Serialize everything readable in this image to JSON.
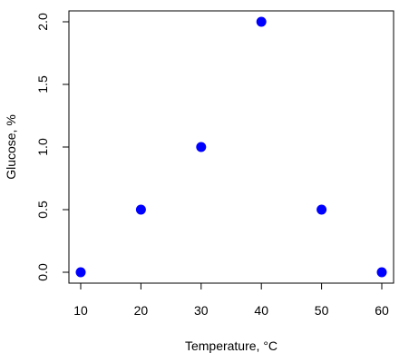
{
  "chart_data": {
    "type": "scatter",
    "title": "",
    "xlabel": "Temperature, °C",
    "ylabel": "Glucose, %",
    "x": [
      10,
      20,
      30,
      40,
      50,
      60
    ],
    "y": [
      0.0,
      0.5,
      1.0,
      2.0,
      0.5,
      0.0
    ],
    "xlim": [
      10,
      60
    ],
    "ylim": [
      0,
      2
    ],
    "x_ticks": [
      10,
      20,
      30,
      40,
      50,
      60
    ],
    "x_tick_labels": [
      "10",
      "20",
      "30",
      "40",
      "50",
      "60"
    ],
    "y_ticks": [
      0,
      0.5,
      1,
      1.5,
      2
    ],
    "y_tick_labels": [
      "0.0",
      "0.5",
      "1.0",
      "1.5",
      "2.0"
    ],
    "grid": false,
    "legend": "none",
    "point_color": "#0000ff",
    "axis_color": "#000000"
  }
}
